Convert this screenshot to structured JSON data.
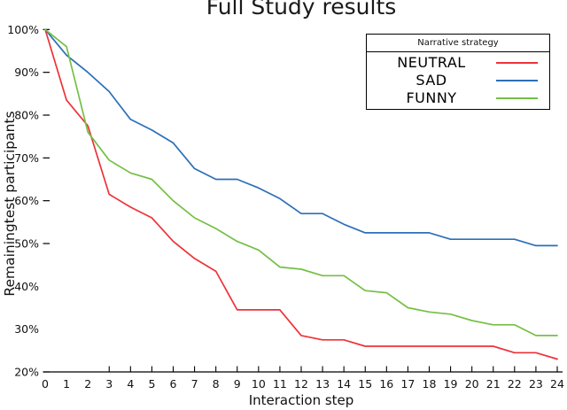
{
  "title": "Full Study results",
  "axes": {
    "x_label": "Interaction step",
    "y_label": "Remainingtest participants",
    "x_ticks": [
      "0",
      "1",
      "2",
      "3",
      "4",
      "5",
      "6",
      "7",
      "8",
      "9",
      "10",
      "11",
      "12",
      "13",
      "14",
      "15",
      "16",
      "17",
      "18",
      "19",
      "20",
      "21",
      "22",
      "23",
      "24"
    ],
    "y_ticks": [
      {
        "label": "100%",
        "value": 100,
        "dash": true
      },
      {
        "label": "90%",
        "value": 90,
        "dash": true
      },
      {
        "label": "80%",
        "value": 80,
        "dash": true
      },
      {
        "label": "70%",
        "value": 70,
        "dash": true
      },
      {
        "label": "60%",
        "value": 60,
        "dash": true
      },
      {
        "label": "50%",
        "value": 50,
        "dash": true
      },
      {
        "label": "40%",
        "value": 40,
        "dash": false
      },
      {
        "label": "30%",
        "value": 30,
        "dash": false
      },
      {
        "label": "20%",
        "value": 20,
        "dash": true
      }
    ]
  },
  "legend": {
    "title": "Narrative strategy",
    "entries": [
      "NEUTRAL",
      "SAD",
      "FUNNY"
    ]
  },
  "chart_data": {
    "type": "line",
    "title": "Full Study results",
    "xlabel": "Interaction step",
    "ylabel": "Remainingtest participants",
    "y_unit": "percent of participants remaining",
    "x": [
      0,
      1,
      2,
      3,
      4,
      5,
      6,
      7,
      8,
      9,
      10,
      11,
      12,
      13,
      14,
      15,
      16,
      17,
      18,
      19,
      20,
      21,
      22,
      23,
      24
    ],
    "xlim": [
      0,
      24
    ],
    "ylim": [
      20,
      100
    ],
    "grid": false,
    "legend_title": "Narrative strategy",
    "legend_position": "upper right",
    "series": [
      {
        "name": "NEUTRAL",
        "color": "#ee3238",
        "values": [
          100,
          83.5,
          77.5,
          61.5,
          58.5,
          56,
          50.5,
          46.5,
          43.5,
          34.5,
          34.5,
          34.5,
          28.5,
          27.5,
          27.5,
          26,
          26,
          26,
          26,
          26,
          26,
          26,
          24.5,
          24.5,
          23
        ]
      },
      {
        "name": "SAD",
        "color": "#2c6fb7",
        "values": [
          100,
          94,
          90,
          85.5,
          79,
          76.5,
          73.5,
          67.5,
          65,
          65,
          63,
          60.5,
          57,
          57,
          54.5,
          52.5,
          52.5,
          52.5,
          52.5,
          51,
          51,
          51,
          51,
          49.5,
          49.5
        ]
      },
      {
        "name": "FUNNY",
        "color": "#74c044",
        "values": [
          100,
          96,
          76,
          69.5,
          66.5,
          65,
          60,
          56,
          53.5,
          50.5,
          48.5,
          44.5,
          44,
          42.5,
          42.5,
          39,
          38.5,
          35,
          34,
          33.5,
          32,
          31,
          31,
          28.5,
          28.5
        ]
      }
    ]
  }
}
